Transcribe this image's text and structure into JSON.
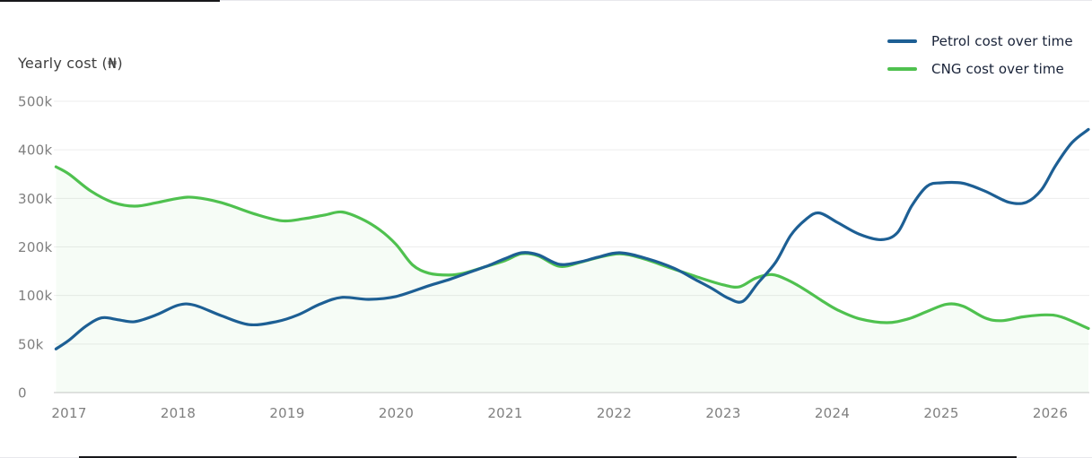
{
  "header": {
    "title": "Yearly cost (₦)"
  },
  "legend": {
    "items": [
      {
        "label": "Petrol cost over time",
        "color": "#1d5f94"
      },
      {
        "label": "CNG cost over time",
        "color": "#4fc14f"
      }
    ]
  },
  "chart_data": {
    "type": "line",
    "title": "Yearly cost (₦)",
    "xlabel": "",
    "ylabel": "Yearly cost (₦)",
    "x_tick_labels": [
      "2017",
      "2018",
      "2019",
      "2020",
      "2021",
      "2022",
      "2023",
      "2024",
      "2025",
      "2026"
    ],
    "y_ticks": [
      {
        "value": 0,
        "label": "0"
      },
      {
        "value": 50000,
        "label": "50k"
      },
      {
        "value": 100000,
        "label": "100k"
      },
      {
        "value": 200000,
        "label": "200k"
      },
      {
        "value": 300000,
        "label": "300k"
      },
      {
        "value": 400000,
        "label": "400k"
      },
      {
        "value": 500000,
        "label": "500k"
      }
    ],
    "y_axis_layout": "tick values unevenly spaced but rendered at equal pixel intervals",
    "x_range_years": [
      2016.88,
      2026.35
    ],
    "grid": true,
    "legend_position": "top-right",
    "background": "#ffffff",
    "grid_color": "#ededed",
    "axis_line_color": "#d9d9d9",
    "tick_label_color": "#7f7f7f",
    "series": [
      {
        "name": "Petrol cost over time",
        "color": "#1d5f94",
        "area": false,
        "points": [
          [
            2016.88,
            45000
          ],
          [
            2017.0,
            54000
          ],
          [
            2017.15,
            68000
          ],
          [
            2017.3,
            77000
          ],
          [
            2017.45,
            75000
          ],
          [
            2017.6,
            73000
          ],
          [
            2017.8,
            80000
          ],
          [
            2018.0,
            90000
          ],
          [
            2018.15,
            90000
          ],
          [
            2018.4,
            79000
          ],
          [
            2018.65,
            70000
          ],
          [
            2018.9,
            73000
          ],
          [
            2019.1,
            80000
          ],
          [
            2019.3,
            91000
          ],
          [
            2019.5,
            98000
          ],
          [
            2019.75,
            96000
          ],
          [
            2020.0,
            99000
          ],
          [
            2020.3,
            120000
          ],
          [
            2020.5,
            134000
          ],
          [
            2020.7,
            150000
          ],
          [
            2020.85,
            162000
          ],
          [
            2021.0,
            176000
          ],
          [
            2021.15,
            188000
          ],
          [
            2021.3,
            184000
          ],
          [
            2021.5,
            164000
          ],
          [
            2021.7,
            170000
          ],
          [
            2021.85,
            179000
          ],
          [
            2022.05,
            188000
          ],
          [
            2022.3,
            176000
          ],
          [
            2022.55,
            156000
          ],
          [
            2022.75,
            132000
          ],
          [
            2022.9,
            114000
          ],
          [
            2023.05,
            97000
          ],
          [
            2023.18,
            94000
          ],
          [
            2023.32,
            126000
          ],
          [
            2023.48,
            168000
          ],
          [
            2023.62,
            224000
          ],
          [
            2023.76,
            257000
          ],
          [
            2023.88,
            270000
          ],
          [
            2024.05,
            250000
          ],
          [
            2024.25,
            226000
          ],
          [
            2024.45,
            215000
          ],
          [
            2024.6,
            230000
          ],
          [
            2024.73,
            285000
          ],
          [
            2024.87,
            325000
          ],
          [
            2025.0,
            332000
          ],
          [
            2025.2,
            331000
          ],
          [
            2025.4,
            315000
          ],
          [
            2025.62,
            292000
          ],
          [
            2025.78,
            292000
          ],
          [
            2025.92,
            318000
          ],
          [
            2026.05,
            368000
          ],
          [
            2026.2,
            415000
          ],
          [
            2026.35,
            442000
          ]
        ]
      },
      {
        "name": "CNG cost over time",
        "color": "#4fc14f",
        "area": true,
        "area_opacity": 0.05,
        "points": [
          [
            2016.88,
            365000
          ],
          [
            2017.0,
            350000
          ],
          [
            2017.2,
            315000
          ],
          [
            2017.4,
            292000
          ],
          [
            2017.6,
            284000
          ],
          [
            2017.8,
            291000
          ],
          [
            2018.0,
            300000
          ],
          [
            2018.15,
            302000
          ],
          [
            2018.4,
            291000
          ],
          [
            2018.7,
            268000
          ],
          [
            2018.95,
            254000
          ],
          [
            2019.15,
            258000
          ],
          [
            2019.35,
            266000
          ],
          [
            2019.5,
            272000
          ],
          [
            2019.68,
            258000
          ],
          [
            2019.85,
            235000
          ],
          [
            2020.0,
            205000
          ],
          [
            2020.15,
            163000
          ],
          [
            2020.3,
            146000
          ],
          [
            2020.48,
            142000
          ],
          [
            2020.62,
            146000
          ],
          [
            2020.8,
            158000
          ],
          [
            2021.0,
            172000
          ],
          [
            2021.15,
            186000
          ],
          [
            2021.3,
            182000
          ],
          [
            2021.5,
            160000
          ],
          [
            2021.7,
            169000
          ],
          [
            2021.85,
            178000
          ],
          [
            2022.05,
            186000
          ],
          [
            2022.25,
            177000
          ],
          [
            2022.5,
            158000
          ],
          [
            2022.75,
            139000
          ],
          [
            2023.0,
            122000
          ],
          [
            2023.15,
            118000
          ],
          [
            2023.3,
            136000
          ],
          [
            2023.45,
            143000
          ],
          [
            2023.6,
            131000
          ],
          [
            2023.75,
            112000
          ],
          [
            2023.9,
            95000
          ],
          [
            2024.05,
            85000
          ],
          [
            2024.25,
            76000
          ],
          [
            2024.5,
            72000
          ],
          [
            2024.7,
            76000
          ],
          [
            2024.88,
            84000
          ],
          [
            2025.05,
            91000
          ],
          [
            2025.2,
            89000
          ],
          [
            2025.4,
            77000
          ],
          [
            2025.55,
            74000
          ],
          [
            2025.75,
            78000
          ],
          [
            2025.95,
            80000
          ],
          [
            2026.1,
            78000
          ],
          [
            2026.35,
            66000
          ]
        ]
      }
    ]
  }
}
